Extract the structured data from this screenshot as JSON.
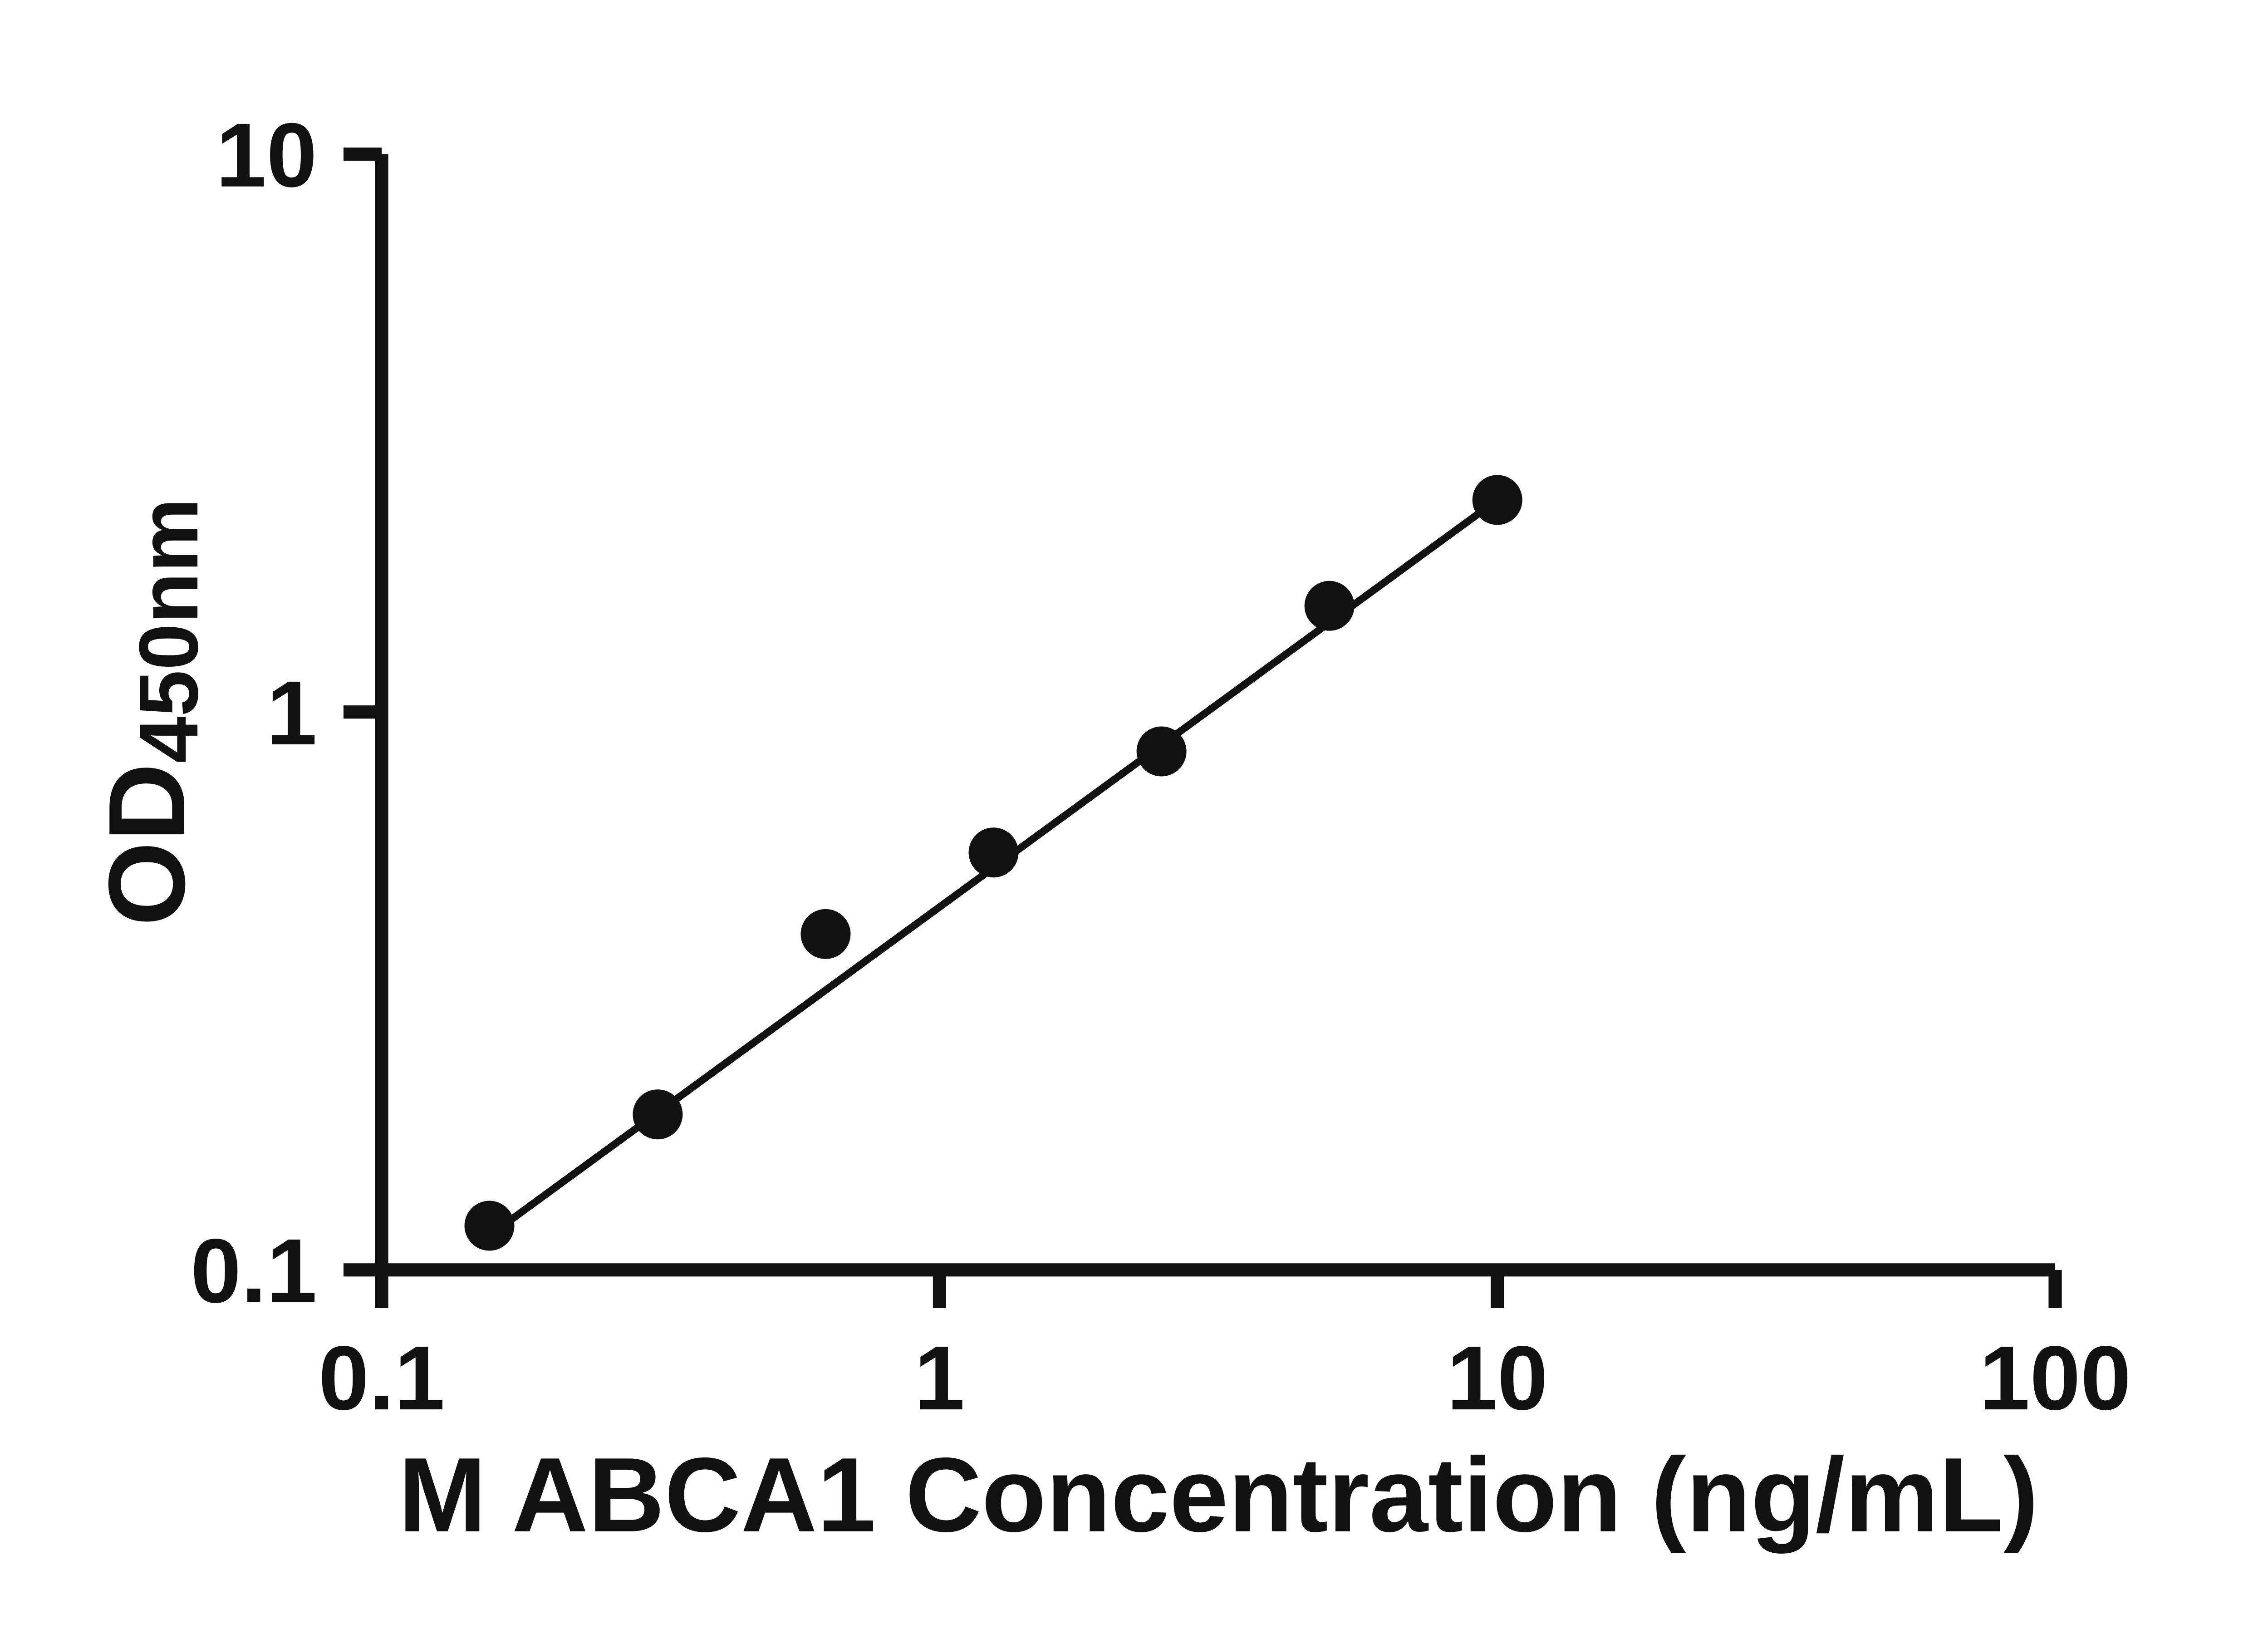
{
  "page": {
    "background": "#ffffff"
  },
  "chart_data": {
    "type": "scatter",
    "title": "",
    "xlabel": "M ABCA1 Concentration (ng/mL)",
    "ylabel_main": "OD",
    "ylabel_sub": "450nm",
    "x_scale": "log",
    "y_scale": "log",
    "xlim": [
      0.1,
      100
    ],
    "ylim": [
      0.1,
      10
    ],
    "grid": false,
    "legend": false,
    "x_ticks": [
      {
        "value": 0.1,
        "label": "0.1"
      },
      {
        "value": 1,
        "label": "1"
      },
      {
        "value": 10,
        "label": "10"
      },
      {
        "value": 100,
        "label": "100"
      }
    ],
    "y_ticks": [
      {
        "value": 0.1,
        "label": "0.1"
      },
      {
        "value": 1,
        "label": "1"
      },
      {
        "value": 10,
        "label": "10"
      }
    ],
    "points": [
      {
        "x": 0.156,
        "y": 0.12
      },
      {
        "x": 0.3125,
        "y": 0.19
      },
      {
        "x": 0.625,
        "y": 0.4
      },
      {
        "x": 1.25,
        "y": 0.56
      },
      {
        "x": 2.5,
        "y": 0.85
      },
      {
        "x": 5,
        "y": 1.55
      },
      {
        "x": 10,
        "y": 2.4
      }
    ],
    "trend_line": {
      "x1": 0.15,
      "y1": 0.112,
      "x2": 10,
      "y2": 2.4
    },
    "marker_color": "#111111",
    "line_color": "#111111",
    "axis_color": "#111111",
    "text_color": "#111111"
  }
}
